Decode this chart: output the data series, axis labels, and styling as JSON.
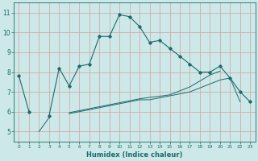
{
  "xlabel": "Humidex (Indice chaleur)",
  "bg_color": "#cce8e8",
  "grid_color": "#d4a0a0",
  "line_color": "#1a6b6b",
  "x_values": [
    0,
    1,
    2,
    3,
    4,
    5,
    6,
    7,
    8,
    9,
    10,
    11,
    12,
    13,
    14,
    15,
    16,
    17,
    18,
    19,
    20,
    21,
    22,
    23
  ],
  "line1_y": [
    7.8,
    6.0,
    null,
    5.8,
    8.2,
    7.3,
    8.3,
    8.4,
    9.8,
    9.8,
    10.9,
    10.8,
    10.3,
    9.5,
    9.6,
    9.2,
    8.8,
    8.4,
    8.0,
    8.0,
    8.3,
    7.7,
    7.0,
    6.5
  ],
  "line2_y": [
    null,
    null,
    5.0,
    5.7,
    null,
    5.9,
    6.0,
    6.1,
    6.2,
    6.3,
    6.4,
    6.5,
    6.6,
    6.6,
    6.7,
    6.8,
    6.9,
    7.0,
    7.2,
    7.4,
    7.6,
    7.7,
    6.5,
    null
  ],
  "line3_y": [
    null,
    null,
    null,
    5.7,
    null,
    5.95,
    6.05,
    6.15,
    6.25,
    6.35,
    6.45,
    6.55,
    6.65,
    6.72,
    6.78,
    6.85,
    7.05,
    7.25,
    7.55,
    7.85,
    8.05,
    null,
    null,
    null
  ],
  "ylim": [
    4.5,
    11.5
  ],
  "xlim": [
    -0.5,
    23.5
  ],
  "yticks": [
    5,
    6,
    7,
    8,
    9,
    10,
    11
  ]
}
